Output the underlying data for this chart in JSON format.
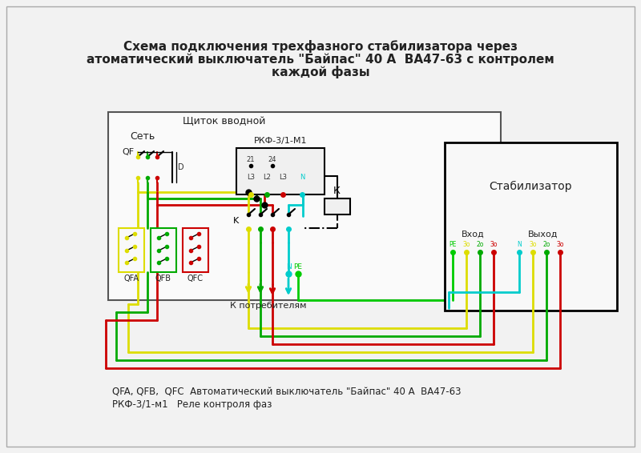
{
  "title_line1": "Схема подключения трехфазного стабилизатора через",
  "title_line2": "атоматический выключатель \"Байпас\" 40 А  ВА47-63 с контролем",
  "title_line3": "каждой фазы",
  "bg_color": "#f2f2f2",
  "label_щиток": "Щиток вводной",
  "label_сеть": "Сеть",
  "label_стабилизатор": "Стабилизатор",
  "label_ркф": "РКФ-3/1-М1",
  "label_к_потребителям": "К потребителям",
  "label_вход": "Вход",
  "label_выход": "Выход",
  "label_qf": "QF",
  "label_k": "К",
  "label_qfa": "QFA",
  "label_qfb": "QFB",
  "label_qfc": "QFC",
  "label_legend1": "QFA, QFB,  QFC  Автоматический выключатель \"Байпас\" 40 А  ВА47-63",
  "label_legend2": "РКФ-3/1-м1   Реле контроля фаз",
  "color_yellow": "#dddd00",
  "color_green": "#00aa00",
  "color_red": "#cc0000",
  "color_cyan": "#00cccc",
  "color_black": "#000000",
  "color_pe": "#00cc00"
}
